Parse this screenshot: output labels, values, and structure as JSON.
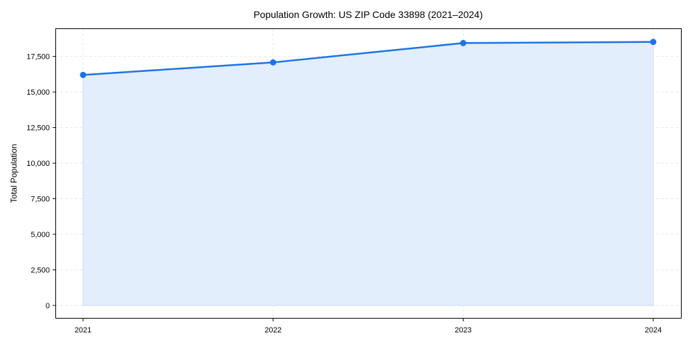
{
  "chart_data": {
    "type": "area",
    "title": "Population Growth: US ZIP Code 33898 (2021–2024)",
    "xlabel": "",
    "ylabel": "Total Population",
    "x": [
      "2021",
      "2022",
      "2023",
      "2024"
    ],
    "series": [
      {
        "name": "Total Population",
        "values": [
          16200,
          17080,
          18440,
          18520
        ],
        "color": "#1a73e8",
        "fill": "#e3eefc"
      }
    ],
    "ylim": [
      -925,
      19475
    ],
    "yticks": [
      0,
      2500,
      5000,
      7500,
      10000,
      12500,
      15000,
      17500
    ],
    "ytick_labels": [
      "0",
      "2,500",
      "5,000",
      "7,500",
      "10,000",
      "12,500",
      "15,000",
      "17,500"
    ],
    "grid": true,
    "legend": "none"
  }
}
